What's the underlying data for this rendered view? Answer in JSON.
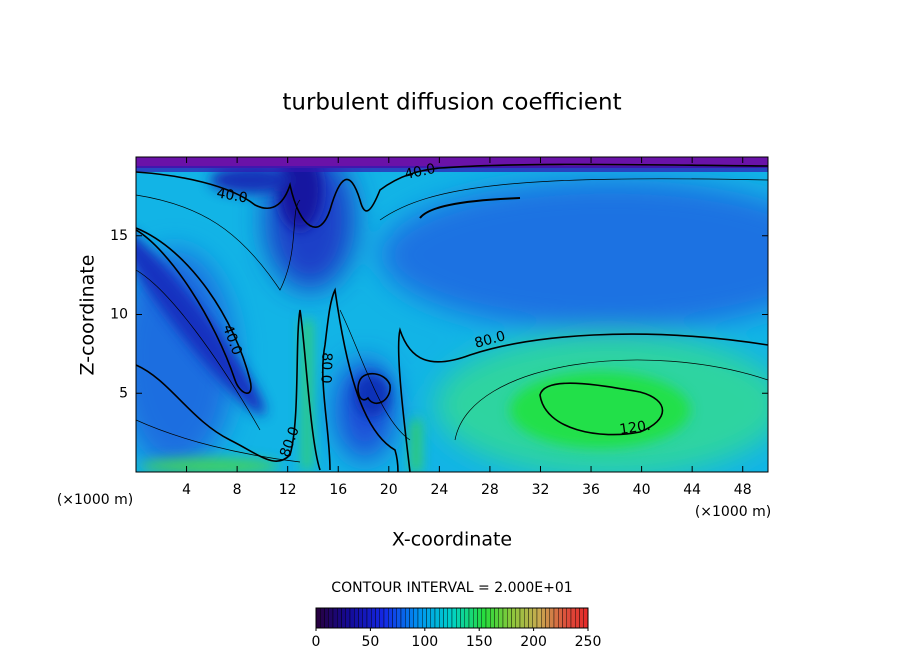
{
  "chart_data": {
    "type": "contour",
    "title": "turbulent diffusion coefficient",
    "x_label": "X-coordinate",
    "y_label": "Z-coordinate",
    "x_unit": "(×1000 m)",
    "xlim": [
      0,
      50
    ],
    "xticks": [
      4,
      8,
      12,
      16,
      20,
      24,
      28,
      32,
      36,
      40,
      44,
      48
    ],
    "ylim": [
      0,
      20
    ],
    "yticks": [
      5,
      10,
      15
    ],
    "contour_labels": [
      {
        "value": 40,
        "label": "40.0"
      },
      {
        "value": 40,
        "label": "40.0"
      },
      {
        "value": 40,
        "label": "40.0"
      },
      {
        "value": 80,
        "label": "80.0"
      },
      {
        "value": 80,
        "label": "80.0"
      },
      {
        "value": 80,
        "label": "80.0"
      },
      {
        "value": 120,
        "label": "120."
      }
    ],
    "contour_interval_label": "CONTOUR INTERVAL = 2.000E+01",
    "colorbar": {
      "lim": [
        0,
        250
      ],
      "ticks": [
        0,
        50,
        100,
        150,
        200,
        250
      ]
    }
  }
}
